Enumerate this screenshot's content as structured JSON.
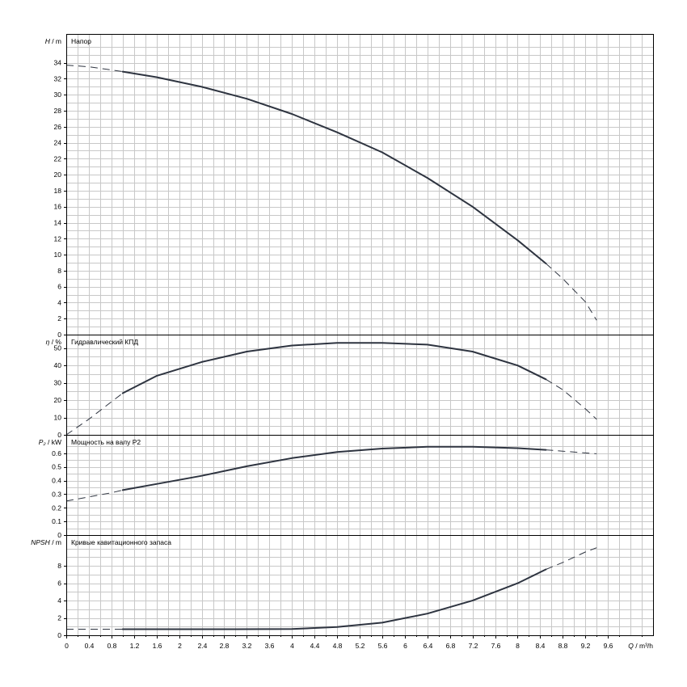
{
  "chart_data": {
    "type": "line",
    "x_axis": {
      "label_var": "Q",
      "label_unit": "m³/h",
      "range": [
        0,
        10.4
      ],
      "tick_step": 0.4,
      "ticks": [
        "0",
        "0.4",
        "0.8",
        "1.2",
        "1.6",
        "2",
        "2.4",
        "2.8",
        "3.2",
        "3.6",
        "4",
        "4.4",
        "4.8",
        "5.2",
        "5.6",
        "6",
        "6.4",
        "6.8",
        "7.2",
        "7.6",
        "8",
        "8.4",
        "8.8",
        "9.2",
        "9.6"
      ]
    },
    "panels": [
      {
        "id": "head",
        "title": "Напор",
        "axis_var": "H",
        "axis_unit": "m",
        "ylim": [
          0,
          37
        ],
        "ticks": [
          0,
          2,
          4,
          6,
          8,
          10,
          12,
          14,
          16,
          18,
          20,
          22,
          24,
          26,
          28,
          30,
          32,
          34
        ],
        "dashed_start": [
          [
            0,
            33.7
          ],
          [
            0.4,
            33.5
          ],
          [
            0.8,
            33.1
          ],
          [
            1.0,
            32.9
          ]
        ],
        "solid": [
          [
            1.0,
            32.9
          ],
          [
            1.6,
            32.2
          ],
          [
            2.4,
            31.0
          ],
          [
            3.2,
            29.5
          ],
          [
            4.0,
            27.6
          ],
          [
            4.8,
            25.3
          ],
          [
            5.6,
            22.8
          ],
          [
            6.4,
            19.6
          ],
          [
            7.2,
            16.0
          ],
          [
            8.0,
            11.8
          ],
          [
            8.5,
            8.9
          ]
        ],
        "dashed_end": [
          [
            8.5,
            8.9
          ],
          [
            8.8,
            7.0
          ],
          [
            9.2,
            4.1
          ],
          [
            9.4,
            1.8
          ]
        ]
      },
      {
        "id": "efficiency",
        "title": "Гидравлический КПД",
        "axis_var": "η",
        "axis_unit": "%",
        "ylim": [
          0,
          55
        ],
        "ticks": [
          0,
          10,
          20,
          30,
          40,
          50
        ],
        "dashed_start": [
          [
            0,
            0
          ],
          [
            0.4,
            9
          ],
          [
            0.8,
            19
          ],
          [
            1.0,
            24
          ]
        ],
        "solid": [
          [
            1.0,
            24
          ],
          [
            1.6,
            34
          ],
          [
            2.4,
            42
          ],
          [
            3.2,
            48
          ],
          [
            4.0,
            51.5
          ],
          [
            4.8,
            53
          ],
          [
            5.6,
            53
          ],
          [
            6.4,
            52
          ],
          [
            7.2,
            48
          ],
          [
            8.0,
            40
          ],
          [
            8.5,
            32
          ]
        ],
        "dashed_end": [
          [
            8.5,
            32
          ],
          [
            8.8,
            26
          ],
          [
            9.2,
            15
          ],
          [
            9.4,
            9
          ]
        ]
      },
      {
        "id": "power",
        "title": "Мощность на валу P2",
        "axis_var": "P₂",
        "axis_unit": "kW",
        "ylim": [
          0,
          0.7
        ],
        "ticks": [
          0,
          0.1,
          0.2,
          0.3,
          0.4,
          0.5,
          0.6
        ],
        "dashed_start": [
          [
            0,
            0.25
          ],
          [
            0.4,
            0.28
          ],
          [
            0.8,
            0.31
          ],
          [
            1.0,
            0.33
          ]
        ],
        "solid": [
          [
            1.0,
            0.33
          ],
          [
            1.6,
            0.375
          ],
          [
            2.4,
            0.435
          ],
          [
            3.2,
            0.505
          ],
          [
            4.0,
            0.565
          ],
          [
            4.8,
            0.61
          ],
          [
            5.6,
            0.635
          ],
          [
            6.4,
            0.648
          ],
          [
            7.2,
            0.648
          ],
          [
            8.0,
            0.638
          ],
          [
            8.5,
            0.625
          ]
        ],
        "dashed_end": [
          [
            8.5,
            0.625
          ],
          [
            8.8,
            0.616
          ],
          [
            9.2,
            0.603
          ],
          [
            9.4,
            0.597
          ]
        ]
      },
      {
        "id": "npsh",
        "title": "Кривые кавитационного запаса",
        "axis_var": "NPSH",
        "axis_unit": "m",
        "ylim": [
          0,
          11
        ],
        "ticks": [
          0,
          2,
          4,
          6,
          8
        ],
        "dashed_start": [
          [
            0,
            0.7
          ],
          [
            0.4,
            0.7
          ],
          [
            0.8,
            0.7
          ],
          [
            1.0,
            0.7
          ]
        ],
        "solid": [
          [
            1.0,
            0.7
          ],
          [
            2.0,
            0.7
          ],
          [
            3.0,
            0.7
          ],
          [
            4.0,
            0.72
          ],
          [
            4.8,
            0.95
          ],
          [
            5.6,
            1.45
          ],
          [
            6.4,
            2.5
          ],
          [
            7.2,
            4.0
          ],
          [
            8.0,
            6.0
          ],
          [
            8.5,
            7.6
          ]
        ],
        "dashed_end": [
          [
            8.5,
            7.6
          ],
          [
            8.8,
            8.4
          ],
          [
            9.2,
            9.6
          ],
          [
            9.4,
            10.1
          ]
        ]
      }
    ]
  }
}
